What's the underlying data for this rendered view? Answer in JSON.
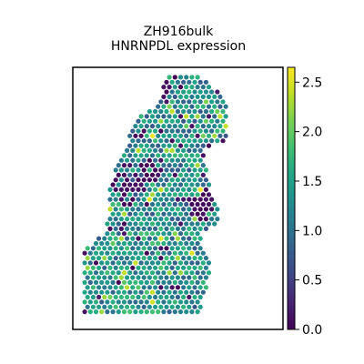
{
  "chart_data": {
    "type": "scatter",
    "title": [
      "ZH916bulk",
      "HNRNPDL expression"
    ],
    "xlabel": "",
    "ylabel": "",
    "colorbar": {
      "colormap": "viridis",
      "range": [
        0.0,
        2.65
      ],
      "ticks": [
        0.0,
        0.5,
        1.0,
        1.5,
        2.0,
        2.5
      ],
      "tick_labels": [
        "0.0",
        "0.5",
        "1.0",
        "1.5",
        "2.0",
        "2.5"
      ]
    },
    "spot_grid": "hexagonal",
    "tissue_region": {
      "outline_data_units": [
        [
          0.44,
          0.99
        ],
        [
          0.56,
          0.99
        ],
        [
          0.74,
          0.88
        ],
        [
          0.74,
          0.72
        ],
        [
          0.62,
          0.69
        ],
        [
          0.66,
          0.52
        ],
        [
          0.7,
          0.46
        ],
        [
          0.68,
          0.39
        ],
        [
          0.6,
          0.37
        ],
        [
          0.66,
          0.23
        ],
        [
          0.6,
          0.05
        ],
        [
          0.05,
          0.05
        ],
        [
          0.05,
          0.3
        ],
        [
          0.16,
          0.37
        ],
        [
          0.18,
          0.56
        ],
        [
          0.3,
          0.8
        ],
        [
          0.41,
          0.87
        ]
      ],
      "background_level": 1.25,
      "low_expression_zones": [
        {
          "cx": 0.26,
          "cy": 0.55,
          "r": 0.08,
          "level": 0.0
        },
        {
          "cx": 0.36,
          "cy": 0.6,
          "r": 0.06,
          "level": 0.0
        },
        {
          "cx": 0.62,
          "cy": 0.48,
          "r": 0.07,
          "level": 0.0
        },
        {
          "cx": 0.44,
          "cy": 0.93,
          "r": 0.06,
          "level": 0.0
        }
      ],
      "high_expression_zones": [
        {
          "cx": 0.3,
          "cy": 0.2,
          "r": 0.25,
          "level": 1.6
        }
      ]
    },
    "axes": {
      "ticks": false,
      "grid": false,
      "frame": true
    }
  }
}
